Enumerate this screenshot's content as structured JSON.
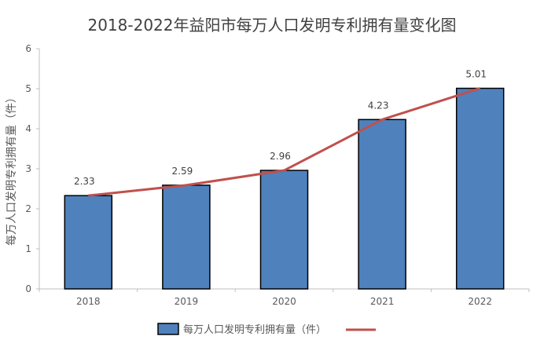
{
  "chart_data": {
    "type": "bar",
    "title": "2018-2022年益阳市每万人口发明专利拥有量变化图",
    "xlabel": "",
    "ylabel": "每万人口发明专利拥有量（件）",
    "categories": [
      "2018",
      "2019",
      "2020",
      "2021",
      "2022"
    ],
    "series": [
      {
        "name": "每万人口发明专利拥有量（件）",
        "kind": "bar",
        "values": [
          2.33,
          2.59,
          2.96,
          4.23,
          5.01
        ],
        "color": "#4F81BD"
      },
      {
        "kind": "line",
        "values": [
          2.33,
          2.59,
          2.96,
          4.23,
          5.01
        ],
        "color": "#C0504D"
      }
    ],
    "data_labels": [
      "2.33",
      "2.59",
      "2.96",
      "4.23",
      "5.01"
    ],
    "yticks": [
      "0",
      "1",
      "2",
      "3",
      "4",
      "5",
      "6"
    ],
    "ylim": [
      0,
      6
    ],
    "grid": false,
    "legend_position": "bottom"
  }
}
